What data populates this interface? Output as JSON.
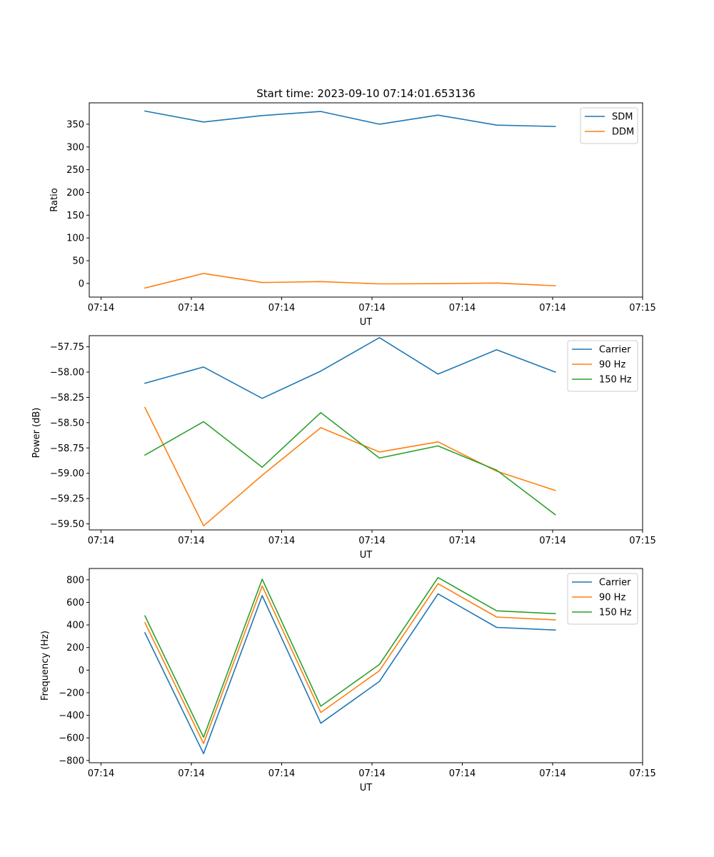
{
  "title": "Start time: 2023-09-10 07:14:01.653136",
  "colors": {
    "blue": "#1f77b4",
    "orange": "#ff7f0e",
    "green": "#2ca02c"
  },
  "chart_data": [
    {
      "type": "line",
      "id": "ratio",
      "xlabel": "UT",
      "ylabel": "Ratio",
      "x_ticks": [
        "07:14",
        "07:14",
        "07:14",
        "07:14",
        "07:14",
        "07:14",
        "07:15"
      ],
      "y_ticks": [
        0,
        50,
        100,
        150,
        200,
        250,
        300,
        350
      ],
      "y_tick_labels": [
        "0",
        "50",
        "100",
        "150",
        "200",
        "250",
        "300",
        "350"
      ],
      "ylim": [
        -30,
        397
      ],
      "legend": "top-right",
      "series": [
        {
          "name": "SDM",
          "color": "#1f77b4",
          "values": [
            379,
            355,
            369,
            378,
            350,
            370,
            348,
            345
          ]
        },
        {
          "name": "DDM",
          "color": "#ff7f0e",
          "values": [
            -10,
            22,
            2,
            4,
            -1,
            -0.5,
            1,
            -5
          ]
        }
      ]
    },
    {
      "type": "line",
      "id": "power",
      "xlabel": "UT",
      "ylabel": "Power (dB)",
      "x_ticks": [
        "07:14",
        "07:14",
        "07:14",
        "07:14",
        "07:14",
        "07:14",
        "07:15"
      ],
      "y_ticks": [
        -59.5,
        -59.25,
        -59.0,
        -58.75,
        -58.5,
        -58.25,
        -58.0,
        -57.75
      ],
      "y_tick_labels": [
        "−59.50",
        "−59.25",
        "−59.00",
        "−58.75",
        "−58.50",
        "−58.25",
        "−58.00",
        "−57.75"
      ],
      "ylim": [
        -59.56,
        -57.64
      ],
      "legend": "top-right",
      "series": [
        {
          "name": "Carrier",
          "color": "#1f77b4",
          "values": [
            -58.11,
            -57.95,
            -58.26,
            -57.99,
            -57.66,
            -58.02,
            -57.78,
            -58.0
          ]
        },
        {
          "name": "90 Hz",
          "color": "#ff7f0e",
          "values": [
            -58.35,
            -59.52,
            -59.02,
            -58.55,
            -58.79,
            -58.69,
            -58.98,
            -59.17
          ]
        },
        {
          "name": "150 Hz",
          "color": "#2ca02c",
          "values": [
            -58.82,
            -58.49,
            -58.94,
            -58.4,
            -58.85,
            -58.73,
            -58.97,
            -59.41
          ]
        }
      ]
    },
    {
      "type": "line",
      "id": "frequency",
      "xlabel": "UT",
      "ylabel": "Frequency (Hz)",
      "x_ticks": [
        "07:14",
        "07:14",
        "07:14",
        "07:14",
        "07:14",
        "07:14",
        "07:15"
      ],
      "y_ticks": [
        -800,
        -600,
        -400,
        -200,
        0,
        200,
        400,
        600,
        800
      ],
      "y_tick_labels": [
        "−800",
        "−600",
        "−400",
        "−200",
        "0",
        "200",
        "400",
        "600",
        "800"
      ],
      "ylim": [
        -820,
        900
      ],
      "legend": "top-right",
      "series": [
        {
          "name": "Carrier",
          "color": "#1f77b4",
          "values": [
            330,
            -740,
            660,
            -470,
            -100,
            675,
            378,
            355
          ]
        },
        {
          "name": "90 Hz",
          "color": "#ff7f0e",
          "values": [
            420,
            -650,
            745,
            -375,
            -5,
            765,
            470,
            445
          ]
        },
        {
          "name": "150 Hz",
          "color": "#2ca02c",
          "values": [
            480,
            -595,
            805,
            -320,
            50,
            820,
            525,
            500
          ]
        }
      ]
    }
  ]
}
